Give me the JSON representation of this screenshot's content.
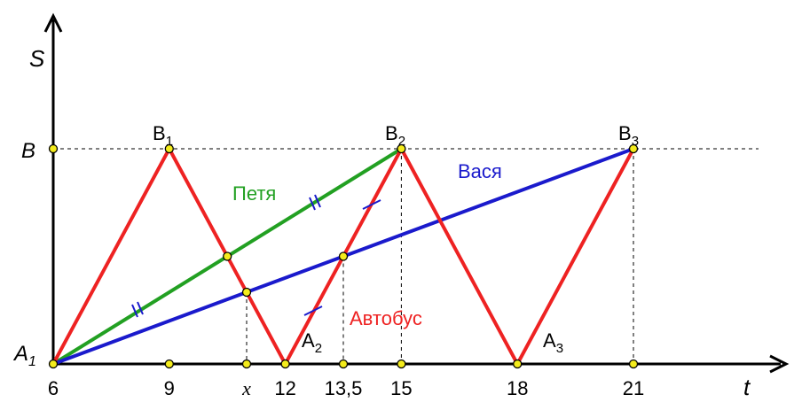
{
  "axes": {
    "y_label": "S",
    "x_label": "t",
    "y_tick_label": "B",
    "origin_label": "A",
    "origin_sub": "1"
  },
  "x_ticks": [
    {
      "label": "6",
      "t": 6
    },
    {
      "label": "9",
      "t": 9
    },
    {
      "label": "x",
      "t": 11
    },
    {
      "label": "12",
      "t": 12
    },
    {
      "label": "13,5",
      "t": 13.5
    },
    {
      "label": "15",
      "t": 15
    },
    {
      "label": "18",
      "t": 18
    },
    {
      "label": "21",
      "t": 21
    }
  ],
  "series": {
    "bus": {
      "name": "Автобус",
      "color": "#ee2222",
      "points": [
        [
          6,
          0
        ],
        [
          9,
          1
        ],
        [
          12,
          0
        ],
        [
          15,
          1
        ],
        [
          18,
          0
        ],
        [
          21,
          1
        ]
      ]
    },
    "petya": {
      "name": "Петя",
      "color": "#22a022",
      "points": [
        [
          6,
          0
        ],
        [
          15,
          1
        ]
      ]
    },
    "vasya": {
      "name": "Вася",
      "color": "#1a1acc",
      "points": [
        [
          6,
          0
        ],
        [
          21,
          1
        ]
      ]
    }
  },
  "point_labels": {
    "B1": {
      "main": "B",
      "sub": "1"
    },
    "B2": {
      "main": "B",
      "sub": "2"
    },
    "B3": {
      "main": "B",
      "sub": "3"
    },
    "A2": {
      "main": "A",
      "sub": "2"
    },
    "A3": {
      "main": "A",
      "sub": "3"
    }
  }
}
